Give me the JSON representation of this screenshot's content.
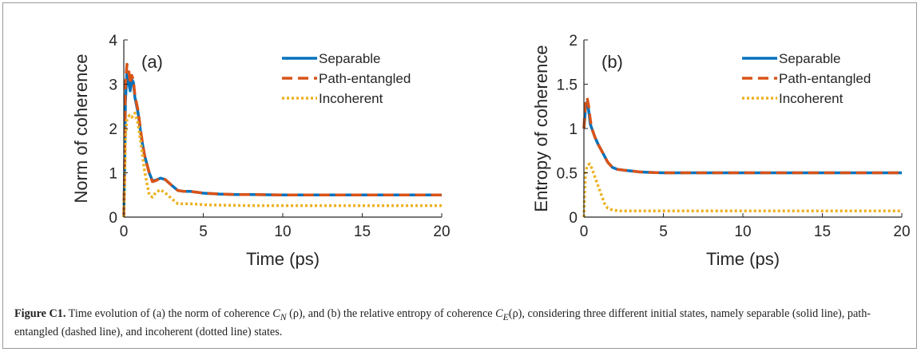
{
  "chart_data": [
    {
      "type": "line",
      "panel_label": "(a)",
      "xlabel": "Time (ps)",
      "ylabel": "Norm of coherence",
      "xlim": [
        0,
        20
      ],
      "ylim": [
        0,
        4
      ],
      "xticks": [
        "0",
        "5",
        "10",
        "15",
        "20"
      ],
      "yticks": [
        "0",
        "1",
        "2",
        "3",
        "4"
      ],
      "legend_position": "top-right",
      "series": [
        {
          "name": "Separable",
          "style": "solid",
          "color": "#0072bd",
          "x": [
            0,
            0.05,
            0.1,
            0.2,
            0.3,
            0.4,
            0.5,
            0.6,
            0.7,
            0.9,
            1.1,
            1.3,
            1.6,
            1.8,
            2.0,
            2.3,
            2.6,
            3.0,
            3.4,
            3.8,
            4.2,
            4.6,
            5.0,
            6.0,
            7.0,
            8.0,
            10.0,
            12.0,
            15.0,
            18.0,
            20.0
          ],
          "y": [
            0,
            1.0,
            2.6,
            3.3,
            3.05,
            2.85,
            3.1,
            3.05,
            2.7,
            2.35,
            1.8,
            1.4,
            1.0,
            0.82,
            0.83,
            0.88,
            0.85,
            0.72,
            0.6,
            0.58,
            0.58,
            0.56,
            0.54,
            0.52,
            0.51,
            0.51,
            0.5,
            0.5,
            0.5,
            0.5,
            0.5
          ]
        },
        {
          "name": "Path-entangled",
          "style": "dashed",
          "color": "#d95319",
          "x": [
            0,
            0.05,
            0.1,
            0.2,
            0.3,
            0.4,
            0.5,
            0.6,
            0.7,
            0.9,
            1.1,
            1.3,
            1.6,
            1.8,
            2.0,
            2.3,
            2.6,
            3.0,
            3.4,
            3.8,
            4.2,
            4.6,
            5.0,
            6.0,
            7.0,
            8.0,
            10.0,
            12.0,
            15.0,
            18.0,
            20.0
          ],
          "y": [
            0,
            1.2,
            3.0,
            3.45,
            3.35,
            3.0,
            3.2,
            3.1,
            2.75,
            2.4,
            1.85,
            1.4,
            1.0,
            0.8,
            0.82,
            0.88,
            0.85,
            0.72,
            0.6,
            0.58,
            0.58,
            0.56,
            0.54,
            0.52,
            0.51,
            0.51,
            0.5,
            0.5,
            0.5,
            0.5,
            0.5
          ]
        },
        {
          "name": "Incoherent",
          "style": "dotted",
          "color": "#edb120",
          "x": [
            0,
            0.05,
            0.1,
            0.2,
            0.35,
            0.5,
            0.7,
            0.9,
            1.1,
            1.3,
            1.6,
            1.8,
            2.0,
            2.3,
            2.6,
            3.0,
            3.4,
            3.8,
            4.2,
            5.0,
            6.0,
            8.0,
            10.0,
            15.0,
            20.0
          ],
          "y": [
            0,
            0.8,
            1.8,
            2.2,
            2.3,
            2.25,
            2.35,
            2.1,
            1.6,
            1.05,
            0.5,
            0.45,
            0.55,
            0.62,
            0.55,
            0.42,
            0.3,
            0.3,
            0.3,
            0.28,
            0.27,
            0.26,
            0.26,
            0.26,
            0.26
          ]
        }
      ]
    },
    {
      "type": "line",
      "panel_label": "(b)",
      "xlabel": "Time (ps)",
      "ylabel": "Entropy of coherence",
      "xlim": [
        0,
        20
      ],
      "ylim": [
        0,
        2
      ],
      "xticks": [
        "0",
        "5",
        "10",
        "15",
        "20"
      ],
      "yticks": [
        "0",
        "0.5",
        "1",
        "1.5",
        "2"
      ],
      "legend_position": "top-right",
      "series": [
        {
          "name": "Separable",
          "style": "solid",
          "color": "#0072bd",
          "x": [
            0,
            0.05,
            0.1,
            0.2,
            0.3,
            0.4,
            0.5,
            0.7,
            0.9,
            1.2,
            1.5,
            1.8,
            2.1,
            2.5,
            3.0,
            3.5,
            4.0,
            5.0,
            6.0,
            8.0,
            10.0,
            15.0,
            20.0
          ],
          "y": [
            1.0,
            1.1,
            1.25,
            1.3,
            1.2,
            1.05,
            1.0,
            0.9,
            0.82,
            0.72,
            0.62,
            0.56,
            0.54,
            0.53,
            0.52,
            0.51,
            0.505,
            0.5,
            0.5,
            0.5,
            0.5,
            0.5,
            0.5
          ]
        },
        {
          "name": "Path-entangled",
          "style": "dashed",
          "color": "#d95319",
          "x": [
            0,
            0.05,
            0.1,
            0.2,
            0.3,
            0.4,
            0.5,
            0.7,
            0.9,
            1.2,
            1.5,
            1.8,
            2.1,
            2.5,
            3.0,
            3.5,
            4.0,
            5.0,
            6.0,
            8.0,
            10.0,
            15.0,
            20.0
          ],
          "y": [
            1.0,
            1.15,
            1.3,
            1.35,
            1.25,
            1.1,
            1.0,
            0.9,
            0.82,
            0.72,
            0.62,
            0.56,
            0.54,
            0.53,
            0.52,
            0.51,
            0.505,
            0.5,
            0.5,
            0.5,
            0.5,
            0.5,
            0.5
          ]
        },
        {
          "name": "Incoherent",
          "style": "dotted",
          "color": "#edb120",
          "x": [
            0,
            0.05,
            0.1,
            0.2,
            0.35,
            0.5,
            0.7,
            0.9,
            1.1,
            1.3,
            1.5,
            1.8,
            2.2,
            3.0,
            4.0,
            6.0,
            10.0,
            15.0,
            20.0
          ],
          "y": [
            0,
            0.3,
            0.5,
            0.58,
            0.6,
            0.55,
            0.45,
            0.35,
            0.25,
            0.15,
            0.1,
            0.08,
            0.07,
            0.07,
            0.07,
            0.07,
            0.07,
            0.07,
            0.07
          ]
        }
      ]
    }
  ],
  "caption": {
    "label": "Figure C1.",
    "text_1": " Time evolution of (a) the norm of coherence ",
    "cn": "C",
    "cn_sub": "N",
    "rho_1": " (ρ), and (b) the relative entropy of coherence ",
    "ce": "C",
    "ce_sub": "E",
    "rho_2": "(ρ), considering three different initial states, namely separable (solid line), path-entangled (dashed line), and incoherent (dotted line) states."
  }
}
